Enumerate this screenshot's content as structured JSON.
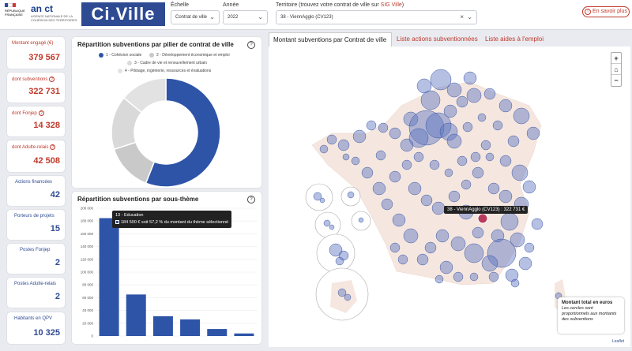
{
  "header": {
    "app_title": "Ci.Ville",
    "republique_text": "RÉPUBLIQUE FRANÇAISE",
    "anct_text": "an ct",
    "anct_sub": "AGENCE NATIONALE DE LA COHÉSION DES TERRITOIRES",
    "echelle_label": "Échelle",
    "echelle_value": "Contrat de ville",
    "annee_label": "Année",
    "annee_value": "2022",
    "territoire_label": "Territoire (trouvez votre contrat de ville sur ",
    "territoire_link": "SIG Ville",
    "territoire_suffix": ")",
    "territoire_value": "38 - ViennAgglo (CV123)",
    "savoir_plus": "En savoir plus"
  },
  "kpis": [
    {
      "label": "Montant engagé (€)",
      "value": "379 567",
      "help": false
    },
    {
      "label": "dont subventions",
      "value": "322 731",
      "help": true
    },
    {
      "label": "dont Fonjep",
      "value": "14 328",
      "help": true
    },
    {
      "label": "dont Adulte-relais",
      "value": "42 508",
      "help": true
    },
    {
      "label": "Actions financées",
      "value": "42",
      "help": false
    },
    {
      "label": "Porteurs de projets",
      "value": "15",
      "help": false
    },
    {
      "label": "Postes Fonjep",
      "value": "2",
      "help": false
    },
    {
      "label": "Postes Adulte-relais",
      "value": "2",
      "help": false
    },
    {
      "label": "Habitants en QPV",
      "value": "10 325",
      "help": false
    }
  ],
  "donut_panel": {
    "title": "Répartition subventions par pilier de contrat de ville",
    "legend": [
      {
        "label": "1 - Cohésion sociale",
        "color": "#2e54a8"
      },
      {
        "label": "2 - Développement économique et emploi",
        "color": "#c9c9c9"
      },
      {
        "label": "3 - Cadre de vie et renouvellement urbain",
        "color": "#d9d9d9"
      },
      {
        "label": "4 - Pilotage, ingénierie, ressources et évaluations",
        "color": "#e2e2e2"
      }
    ]
  },
  "bar_panel": {
    "title": "Répartition subventions par sous-thème",
    "tooltip_title": "13 - Education",
    "tooltip_text": "184 500 € soit 57,2 % du montant du thème sélectionné"
  },
  "chart_data": [
    {
      "type": "pie",
      "title": "Répartition subventions par pilier de contrat de ville",
      "categories": [
        "1 - Cohésion sociale",
        "2 - Développement économique et emploi",
        "3 - Cadre de vie et renouvellement urbain",
        "4 - Pilotage, ingénierie, ressources et évaluations"
      ],
      "values": [
        56,
        14,
        16,
        14
      ],
      "colors": [
        "#2e54a8",
        "#c9c9c9",
        "#d9d9d9",
        "#e2e2e2"
      ]
    },
    {
      "type": "bar",
      "title": "Répartition subventions par sous-thème",
      "categories": [
        "13 - Education",
        "",
        "",
        "",
        "",
        ""
      ],
      "values": [
        184500,
        65000,
        31000,
        26000,
        11000,
        4000
      ],
      "ylim": [
        0,
        200000
      ],
      "yticks": [
        "0",
        "20 000",
        "40 000",
        "60 000",
        "80 000",
        "100 000",
        "120 000",
        "140 000",
        "160 000",
        "180 000",
        "200 000"
      ],
      "color": "#2e54a8"
    }
  ],
  "tabs": [
    {
      "label": "Montant subventions par Contrat de ville",
      "active": true
    },
    {
      "label": "Liste actions subventionnées",
      "active": false
    },
    {
      "label": "Liste aides à l'emploi",
      "active": false
    }
  ],
  "map": {
    "zoom_in": "+",
    "home": "⌂",
    "zoom_out": "−",
    "tooltip": "38 - ViennAgglo (CV123) : 322 731 €",
    "legend_title": "Montant total en euros",
    "legend_text": "Les cercles sont proportionnels aux montants des subventions",
    "attribution": "Leaflet"
  }
}
